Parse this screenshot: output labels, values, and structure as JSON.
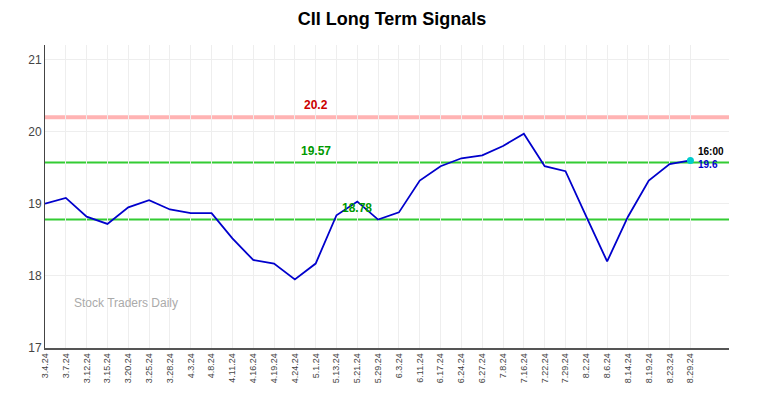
{
  "chart_data": {
    "type": "line",
    "title": "CII Long Term Signals",
    "categories": [
      "3.4.24",
      "3.7.24",
      "3.12.24",
      "3.15.24",
      "3.20.24",
      "3.25.24",
      "3.28.24",
      "4.3.24",
      "4.8.24",
      "4.11.24",
      "4.16.24",
      "4.19.24",
      "4.24.24",
      "5.1.24",
      "5.13.24",
      "5.21.24",
      "5.29.24",
      "6.3.24",
      "6.11.24",
      "6.17.24",
      "6.24.24",
      "6.27.24",
      "7.8.24",
      "7.16.24",
      "7.22.24",
      "7.29.24",
      "8.2.24",
      "8.6.24",
      "8.14.24",
      "8.19.24",
      "8.23.24",
      "8.29.24"
    ],
    "values": [
      19.0,
      19.08,
      18.82,
      18.72,
      18.95,
      19.05,
      18.92,
      18.87,
      18.87,
      18.52,
      18.22,
      18.17,
      17.95,
      18.17,
      18.84,
      19.03,
      18.78,
      18.88,
      19.32,
      19.52,
      19.63,
      19.67,
      19.8,
      19.97,
      19.52,
      19.45,
      18.82,
      18.2,
      18.82,
      19.32,
      19.55,
      19.6
    ],
    "color": "#0000cc",
    "ylim": [
      17.0,
      21.2
    ],
    "yticks": [
      17,
      18,
      19,
      20,
      21
    ],
    "grid": true,
    "hlines": [
      {
        "value": 20.2,
        "label": "20.2",
        "color": "#ffb3b3",
        "label_color": "#cc0000",
        "category": "5.1.24"
      },
      {
        "value": 19.57,
        "label": "19.57",
        "color": "#33cc33",
        "label_color": "#009900",
        "category": "5.1.24"
      },
      {
        "value": 18.78,
        "label": "18.78",
        "color": "#33cc33",
        "label_color": "#009900",
        "category": "5.21.24"
      }
    ],
    "end_marker": {
      "color": "#00cccc",
      "labels": [
        {
          "text": "16:00",
          "color": "#000000"
        },
        {
          "text": "19.6",
          "color": "#0000cc"
        }
      ]
    },
    "watermark": {
      "text": "Stock Traders Daily",
      "color": "#aaaaaa"
    }
  }
}
